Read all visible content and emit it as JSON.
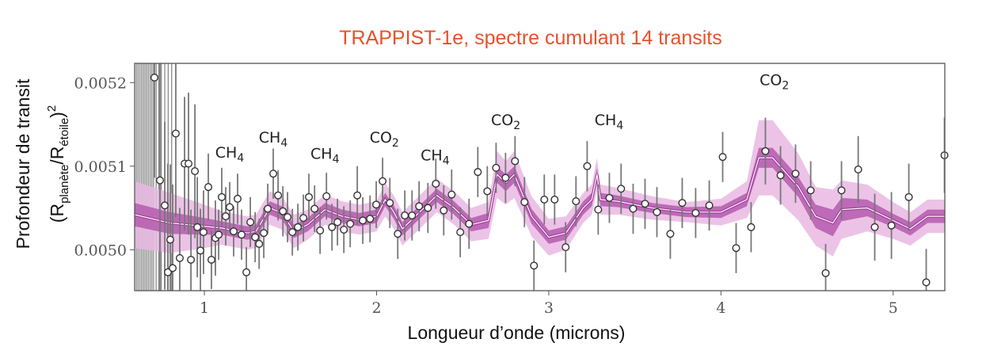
{
  "chart_data": {
    "type": "scatter",
    "title": "TRAPPIST-1e, spectre cumulant 14 transits",
    "title_color": "#e8502a",
    "xlabel": "Longueur d’onde (microns)",
    "ylabel": {
      "line1": "Profondeur de transit",
      "line2_parts": [
        "(R",
        "planète",
        "/R",
        "étoile",
        ")",
        "2"
      ]
    },
    "xlim": [
      0.595,
      5.3
    ],
    "ylim": [
      0.004951,
      0.005223
    ],
    "xticks": [
      1,
      2,
      3,
      4,
      5
    ],
    "xtick_labels": [
      "1",
      "2",
      "3",
      "4",
      "5"
    ],
    "yticks": [
      0.005,
      0.0051,
      0.0052
    ],
    "ytick_labels": [
      "0.0050",
      "0.0051",
      "0.0052"
    ],
    "grid": false,
    "colors": {
      "outer_band": "#e9b8e3",
      "inner_band": "#b55aae",
      "median_edge": "#a23c9a",
      "median": "#ffffff",
      "points": "#ffffff",
      "errorbars": "#777777"
    },
    "offscale_x": [
      0.605,
      0.615,
      0.625,
      0.635,
      0.645,
      0.655,
      0.665,
      0.675,
      0.685,
      0.695,
      0.705,
      0.72,
      0.735,
      0.75,
      0.77,
      0.79,
      0.81
    ],
    "points": [
      [
        0.71,
        0.005206,
        0.00012
      ],
      [
        0.742,
        0.005083,
        0.0002
      ],
      [
        0.77,
        0.005053,
        0.0001
      ],
      [
        0.788,
        0.004973,
        0.00013
      ],
      [
        0.802,
        0.005012,
        9e-05
      ],
      [
        0.816,
        0.004978,
        0.0001
      ],
      [
        0.834,
        0.005139,
        0.0001
      ],
      [
        0.857,
        0.00499,
        6e-05
      ],
      [
        0.885,
        0.005103,
        8e-05
      ],
      [
        0.908,
        0.005103,
        8.5e-05
      ],
      [
        0.922,
        0.004988,
        6e-05
      ],
      [
        0.945,
        0.005094,
        8e-05
      ],
      [
        0.959,
        0.005027,
        6e-05
      ],
      [
        0.977,
        0.004999,
        5e-05
      ],
      [
        0.995,
        0.005021,
        5e-05
      ],
      [
        1.023,
        0.005075,
        4e-05
      ],
      [
        1.041,
        0.004988,
        3.5e-05
      ],
      [
        1.064,
        0.005014,
        4.5e-05
      ],
      [
        1.083,
        0.005018,
        3e-05
      ],
      [
        1.101,
        0.005063,
        3.5e-05
      ],
      [
        1.124,
        0.00504,
        3.5e-05
      ],
      [
        1.147,
        0.005051,
        3e-05
      ],
      [
        1.17,
        0.005022,
        3e-05
      ],
      [
        1.193,
        0.005061,
        3e-05
      ],
      [
        1.216,
        0.005018,
        3e-05
      ],
      [
        1.244,
        0.004973,
        3e-05
      ],
      [
        1.267,
        0.005033,
        3e-05
      ],
      [
        1.295,
        0.005015,
        3e-05
      ],
      [
        1.318,
        0.005007,
        3e-05
      ],
      [
        1.345,
        0.00502,
        3e-05
      ],
      [
        1.368,
        0.005049,
        3e-05
      ],
      [
        1.4,
        0.005091,
        3e-05
      ],
      [
        1.428,
        0.005065,
        3e-05
      ],
      [
        1.456,
        0.005046,
        3e-05
      ],
      [
        1.483,
        0.005039,
        3e-05
      ],
      [
        1.511,
        0.005021,
        2.8e-05
      ],
      [
        1.543,
        0.005027,
        2.8e-05
      ],
      [
        1.575,
        0.005038,
        2.8e-05
      ],
      [
        1.607,
        0.005063,
        2.8e-05
      ],
      [
        1.64,
        0.005049,
        2.8e-05
      ],
      [
        1.672,
        0.005023,
        2.8e-05
      ],
      [
        1.709,
        0.005064,
        2.8e-05
      ],
      [
        1.741,
        0.005027,
        2.8e-05
      ],
      [
        1.773,
        0.005033,
        2.8e-05
      ],
      [
        1.81,
        0.005024,
        2.8e-05
      ],
      [
        1.847,
        0.005031,
        2.8e-05
      ],
      [
        1.888,
        0.005065,
        3.5e-05
      ],
      [
        1.92,
        0.005035,
        2.8e-05
      ],
      [
        1.962,
        0.005037,
        2.8e-05
      ],
      [
        1.998,
        0.005054,
        2.8e-05
      ],
      [
        2.035,
        0.005082,
        2.8e-05
      ],
      [
        2.077,
        0.005056,
        3e-05
      ],
      [
        2.123,
        0.005019,
        3e-05
      ],
      [
        2.164,
        0.005041,
        3e-05
      ],
      [
        2.206,
        0.005041,
        3e-05
      ],
      [
        2.247,
        0.005052,
        3e-05
      ],
      [
        2.298,
        0.00505,
        3e-05
      ],
      [
        2.344,
        0.005079,
        3e-05
      ],
      [
        2.39,
        0.005047,
        3e-05
      ],
      [
        2.436,
        0.005066,
        3e-05
      ],
      [
        2.486,
        0.005021,
        3e-05
      ],
      [
        2.537,
        0.005031,
        3e-05
      ],
      [
        2.588,
        0.005093,
        3e-05
      ],
      [
        2.643,
        0.00507,
        3e-05
      ],
      [
        2.694,
        0.005098,
        3e-05
      ],
      [
        2.749,
        0.005086,
        3e-05
      ],
      [
        2.804,
        0.005106,
        3e-05
      ],
      [
        2.859,
        0.005057,
        3e-05
      ],
      [
        2.914,
        0.004981,
        3e-05
      ],
      [
        2.974,
        0.00506,
        3e-05
      ],
      [
        3.034,
        0.00506,
        3e-05
      ],
      [
        3.098,
        0.005003,
        3e-05
      ],
      [
        3.158,
        0.005058,
        3e-05
      ],
      [
        3.223,
        0.0051,
        3e-05
      ],
      [
        3.287,
        0.005048,
        3e-05
      ],
      [
        3.352,
        0.005062,
        3e-05
      ],
      [
        3.42,
        0.005073,
        3e-05
      ],
      [
        3.49,
        0.005049,
        3e-05
      ],
      [
        3.559,
        0.005055,
        3e-05
      ],
      [
        3.628,
        0.005045,
        3e-05
      ],
      [
        3.706,
        0.005019,
        3e-05
      ],
      [
        3.775,
        0.005056,
        3e-05
      ],
      [
        3.853,
        0.005044,
        3e-05
      ],
      [
        3.932,
        0.005053,
        3e-05
      ],
      [
        4.01,
        0.005111,
        3e-05
      ],
      [
        4.088,
        0.005002,
        3e-05
      ],
      [
        4.175,
        0.005027,
        3e-05
      ],
      [
        4.258,
        0.005118,
        4e-05
      ],
      [
        4.346,
        0.005089,
        3.5e-05
      ],
      [
        4.433,
        0.005091,
        3.5e-05
      ],
      [
        4.521,
        0.005071,
        3.5e-05
      ],
      [
        4.608,
        0.004972,
        3.5e-05
      ],
      [
        4.7,
        0.005071,
        3.5e-05
      ],
      [
        4.797,
        0.005096,
        4e-05
      ],
      [
        4.893,
        0.005027,
        4e-05
      ],
      [
        4.99,
        0.005029,
        4e-05
      ],
      [
        5.091,
        0.005063,
        4e-05
      ],
      [
        5.192,
        0.004961,
        4e-05
      ],
      [
        5.298,
        0.005113,
        4.5e-05
      ]
    ],
    "model": [
      [
        0.595,
        0.005042,
        1.4e-05,
        4e-05
      ],
      [
        0.8,
        0.005032,
        1.3e-05,
        3.6e-05
      ],
      [
        1.0,
        0.005028,
        1e-05,
        2.6e-05
      ],
      [
        1.1,
        0.005026,
        8e-06,
        2e-05
      ],
      [
        1.25,
        0.00502,
        8e-06,
        2e-05
      ],
      [
        1.3,
        0.005022,
        8e-06,
        2e-05
      ],
      [
        1.38,
        0.00505,
        8e-06,
        2e-05
      ],
      [
        1.45,
        0.005044,
        8e-06,
        2e-05
      ],
      [
        1.52,
        0.005022,
        8e-06,
        2e-05
      ],
      [
        1.6,
        0.00503,
        8e-06,
        1.8e-05
      ],
      [
        1.7,
        0.005048,
        8e-06,
        1.8e-05
      ],
      [
        1.8,
        0.00504,
        8e-06,
        1.8e-05
      ],
      [
        1.9,
        0.005036,
        8e-06,
        1.8e-05
      ],
      [
        2.0,
        0.00504,
        8e-06,
        1.8e-05
      ],
      [
        2.05,
        0.00506,
        8e-06,
        2e-05
      ],
      [
        2.1,
        0.005045,
        8e-06,
        2e-05
      ],
      [
        2.15,
        0.005025,
        8e-06,
        2e-05
      ],
      [
        2.25,
        0.005045,
        8e-06,
        2e-05
      ],
      [
        2.35,
        0.005065,
        8e-06,
        2e-05
      ],
      [
        2.45,
        0.00505,
        8e-06,
        2e-05
      ],
      [
        2.55,
        0.00503,
        8e-06,
        2e-05
      ],
      [
        2.65,
        0.005035,
        9e-06,
        2.2e-05
      ],
      [
        2.7,
        0.00509,
        1e-05,
        2.8e-05
      ],
      [
        2.75,
        0.00508,
        1e-05,
        2.6e-05
      ],
      [
        2.8,
        0.00509,
        1e-05,
        2.8e-05
      ],
      [
        2.9,
        0.00504,
        9e-06,
        2.4e-05
      ],
      [
        3.0,
        0.005015,
        8e-06,
        2.2e-05
      ],
      [
        3.1,
        0.00502,
        8e-06,
        2e-05
      ],
      [
        3.2,
        0.00505,
        8e-06,
        1.8e-05
      ],
      [
        3.25,
        0.00506,
        8e-06,
        1.8e-05
      ],
      [
        3.28,
        0.00509,
        8e-06,
        2e-05
      ],
      [
        3.3,
        0.00506,
        8e-06,
        1.8e-05
      ],
      [
        3.4,
        0.005058,
        7e-06,
        1.6e-05
      ],
      [
        3.6,
        0.00505,
        6e-06,
        1.4e-05
      ],
      [
        3.8,
        0.005045,
        6e-06,
        1.2e-05
      ],
      [
        4.0,
        0.005045,
        7e-06,
        1.6e-05
      ],
      [
        4.15,
        0.00506,
        8e-06,
        2.2e-05
      ],
      [
        4.22,
        0.00511,
        1.2e-05,
        4.5e-05
      ],
      [
        4.3,
        0.00511,
        1.2e-05,
        4.5e-05
      ],
      [
        4.45,
        0.005075,
        1.2e-05,
        4e-05
      ],
      [
        4.55,
        0.00504,
        1.4e-05,
        3.5e-05
      ],
      [
        4.65,
        0.005032,
        1.6e-05,
        4e-05
      ],
      [
        4.7,
        0.005048,
        1.4e-05,
        3.5e-05
      ],
      [
        4.85,
        0.00505,
        1e-05,
        2.8e-05
      ],
      [
        5.0,
        0.005035,
        8e-06,
        2.2e-05
      ],
      [
        5.1,
        0.005025,
        8e-06,
        2e-05
      ],
      [
        5.2,
        0.00504,
        8e-06,
        2e-05
      ],
      [
        5.3,
        0.00504,
        8e-06,
        2e-05
      ]
    ],
    "annotations": [
      {
        "label": "CH",
        "sub": "4",
        "x": 1.147,
        "y": 0.00511
      },
      {
        "label": "CH",
        "sub": "4",
        "x": 1.4,
        "y": 0.005128
      },
      {
        "label": "CH",
        "sub": "4",
        "x": 1.7,
        "y": 0.005109
      },
      {
        "label": "CO",
        "sub": "2",
        "x": 2.045,
        "y": 0.005128
      },
      {
        "label": "CH",
        "sub": "4",
        "x": 2.34,
        "y": 0.005107
      },
      {
        "label": "CO",
        "sub": "2",
        "x": 2.75,
        "y": 0.005149
      },
      {
        "label": "CH",
        "sub": "4",
        "x": 3.35,
        "y": 0.005149
      },
      {
        "label": "CO",
        "sub": "2",
        "x": 4.31,
        "y": 0.005197
      }
    ]
  }
}
